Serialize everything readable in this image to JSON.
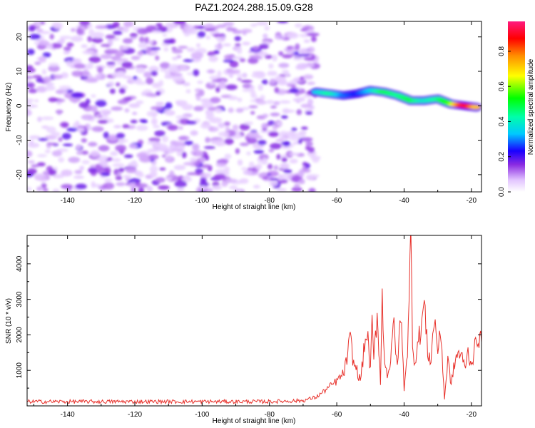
{
  "title": "PAZ1.2024.288.15.09.G28",
  "chart_data": [
    {
      "type": "heatmap",
      "xlabel": "Height of straight line (km)",
      "ylabel": "Frequency (Hz)",
      "xlim": [
        -152,
        -17
      ],
      "ylim": [
        -25,
        24.5
      ],
      "xticks": [
        -140,
        -120,
        -100,
        -80,
        -60,
        -40,
        -20
      ],
      "yticks": [
        -20,
        -10,
        0,
        10,
        20
      ],
      "colorbar": {
        "label": "Normalized spectral amplitude",
        "range": [
          0,
          0.97
        ],
        "ticks": [
          0.0,
          0.2,
          0.4,
          0.6,
          0.8
        ]
      },
      "ridge": [
        {
          "x": -66,
          "freq": 4,
          "amp": 0.35
        },
        {
          "x": -62,
          "freq": 3.5,
          "amp": 0.45
        },
        {
          "x": -58,
          "freq": 3,
          "amp": 0.3
        },
        {
          "x": -54,
          "freq": 3.5,
          "amp": 0.25
        },
        {
          "x": -50,
          "freq": 4.5,
          "amp": 0.35
        },
        {
          "x": -46,
          "freq": 4,
          "amp": 0.5
        },
        {
          "x": -42,
          "freq": 3,
          "amp": 0.45
        },
        {
          "x": -38,
          "freq": 1.5,
          "amp": 0.5
        },
        {
          "x": -34,
          "freq": 1.5,
          "amp": 0.4
        },
        {
          "x": -30,
          "freq": 2,
          "amp": 0.45
        },
        {
          "x": -26,
          "freq": 0.5,
          "amp": 0.6
        },
        {
          "x": -22,
          "freq": 0,
          "amp": 0.97
        },
        {
          "x": -18,
          "freq": -0.5,
          "amp": 0.7
        }
      ],
      "noise_region": [
        -152,
        -66
      ],
      "noise_amp": [
        0.05,
        0.2
      ]
    },
    {
      "type": "line",
      "xlabel": "Height of straight line (km)",
      "ylabel": "SNR (10 * v/v)",
      "xlim": [
        -152,
        -17
      ],
      "ylim": [
        0,
        4800
      ],
      "xticks": [
        -140,
        -120,
        -100,
        -80,
        -60,
        -40,
        -20
      ],
      "yticks": [
        1000,
        2000,
        3000,
        4000
      ],
      "color": "#e8302a",
      "series": [
        {
          "x": [
            -152,
            -140,
            -120,
            -100,
            -80,
            -70,
            -66,
            -64,
            -62,
            -60,
            -58,
            -57,
            -56,
            -55,
            -54,
            -53,
            -52,
            -51,
            -50,
            -49.5,
            -49,
            -48,
            -47,
            -46.5,
            -46,
            -45,
            -44,
            -43,
            -42,
            -41,
            -40,
            -39,
            -38.5,
            -38,
            -37.5,
            -37,
            -36,
            -35,
            -34,
            -33,
            -32,
            -31,
            -30,
            -29,
            -28,
            -27,
            -26,
            -25,
            -24,
            -23,
            -22,
            -21,
            -20,
            -19,
            -18,
            -17
          ],
          "y": [
            120,
            120,
            120,
            120,
            120,
            150,
            250,
            400,
            550,
            700,
            900,
            1300,
            1900,
            1200,
            1000,
            700,
            1500,
            2100,
            1000,
            2300,
            1300,
            2600,
            700,
            3100,
            1500,
            900,
            1200,
            2400,
            1000,
            2700,
            500,
            1600,
            2800,
            4800,
            2000,
            1200,
            1700,
            2200,
            2900,
            1500,
            1300,
            2500,
            1600,
            2000,
            200,
            1300,
            600,
            1200,
            1500,
            1400,
            1100,
            1500,
            1200,
            1600,
            2000,
            1800
          ]
        }
      ]
    }
  ]
}
